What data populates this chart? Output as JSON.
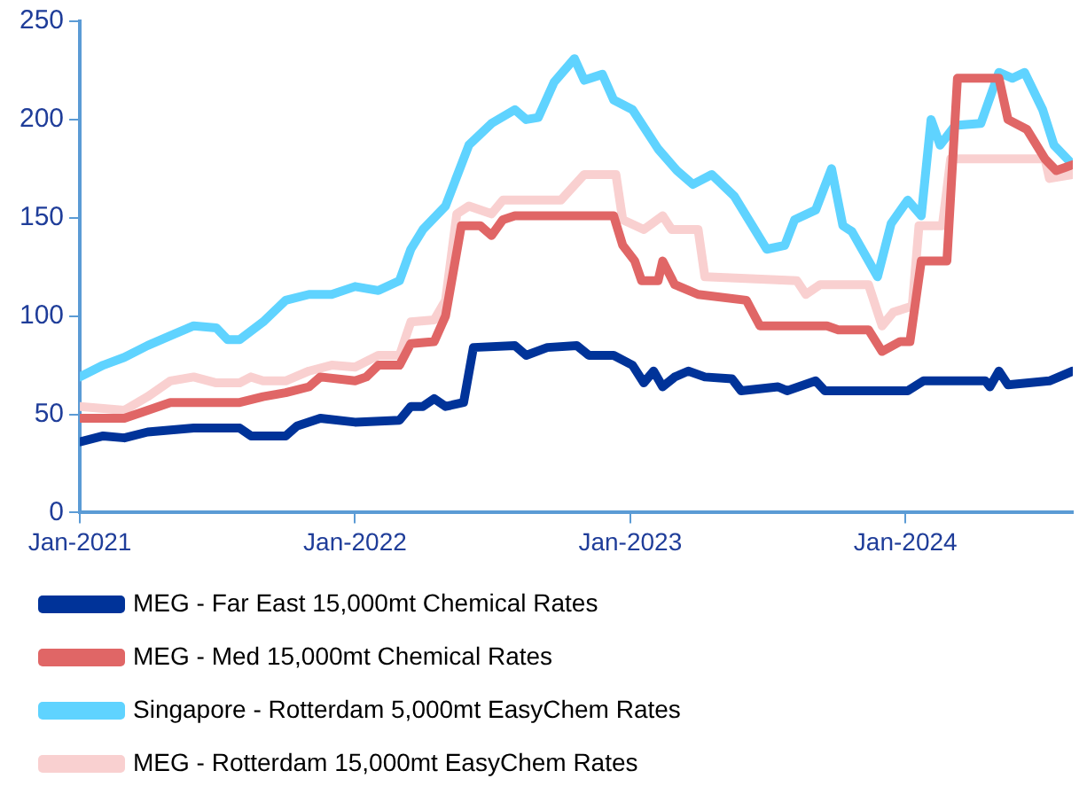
{
  "chart_data": {
    "type": "line",
    "legend": "bottom",
    "grid": false,
    "marker": "none",
    "line_style": "solid",
    "xlim": [
      "2021-01-01",
      "2024-08-10"
    ],
    "xticks": [
      {
        "value": "2021-01-01",
        "label": "Jan-2021"
      },
      {
        "value": "2022-01-01",
        "label": "Jan-2022"
      },
      {
        "value": "2023-01-01",
        "label": "Jan-2023"
      },
      {
        "value": "2024-01-01",
        "label": "Jan-2024"
      }
    ],
    "ylim": [
      0,
      250
    ],
    "yticks": [
      0,
      50,
      100,
      150,
      200,
      250
    ],
    "series": [
      {
        "name": "MEG - Far East 15,000mt Chemical Rates",
        "color": "#003399",
        "x": [
          "2021-01-01",
          "2021-02-01",
          "2021-03-01",
          "2021-04-01",
          "2021-06-01",
          "2021-08-01",
          "2021-08-16",
          "2021-10-01",
          "2021-10-16",
          "2021-11-16",
          "2022-01-01",
          "2022-03-01",
          "2022-03-16",
          "2022-04-01",
          "2022-04-16",
          "2022-05-01",
          "2022-05-25",
          "2022-06-07",
          "2022-08-01",
          "2022-08-16",
          "2022-09-13",
          "2022-10-22",
          "2022-11-07",
          "2022-12-10",
          "2023-01-04",
          "2023-01-19",
          "2023-02-01",
          "2023-02-13",
          "2023-03-01",
          "2023-03-19",
          "2023-04-10",
          "2023-05-16",
          "2023-05-28",
          "2023-07-16",
          "2023-07-28",
          "2023-09-04",
          "2023-09-16",
          "2024-01-04",
          "2024-01-25",
          "2024-04-16",
          "2024-04-22",
          "2024-05-04",
          "2024-05-16",
          "2024-07-10",
          "2024-08-10"
        ],
        "values": [
          36,
          39,
          38,
          41,
          43,
          43,
          39,
          39,
          44,
          48,
          46,
          47,
          54,
          54,
          58,
          54,
          56,
          84,
          85,
          80,
          84,
          85,
          80,
          80,
          75,
          66,
          72,
          64,
          69,
          72,
          69,
          68,
          62,
          64,
          62,
          67,
          62,
          62,
          67,
          67,
          64,
          72,
          65,
          67,
          72
        ]
      },
      {
        "name": "MEG - Med 15,000mt Chemical Rates",
        "color": "#e06666",
        "x": [
          "2021-01-01",
          "2021-03-01",
          "2021-04-01",
          "2021-05-01",
          "2021-08-01",
          "2021-09-01",
          "2021-10-01",
          "2021-11-01",
          "2021-11-16",
          "2022-01-01",
          "2022-01-16",
          "2022-02-01",
          "2022-03-01",
          "2022-03-16",
          "2022-04-16",
          "2022-05-01",
          "2022-05-22",
          "2022-06-16",
          "2022-07-01",
          "2022-07-16",
          "2022-08-01",
          "2022-12-10",
          "2022-12-22",
          "2023-01-07",
          "2023-01-16",
          "2023-02-07",
          "2023-02-13",
          "2023-03-01",
          "2023-04-01",
          "2023-06-04",
          "2023-06-22",
          "2023-09-19",
          "2023-10-04",
          "2023-11-13",
          "2023-12-01",
          "2023-12-25",
          "2024-01-07",
          "2024-01-22",
          "2024-02-25",
          "2024-03-10",
          "2024-05-04",
          "2024-05-16",
          "2024-06-10",
          "2024-07-04",
          "2024-07-19",
          "2024-08-10"
        ],
        "values": [
          48,
          48,
          52,
          56,
          56,
          59,
          61,
          64,
          69,
          67,
          69,
          75,
          75,
          86,
          87,
          100,
          146,
          146,
          141,
          149,
          151,
          151,
          136,
          128,
          118,
          118,
          128,
          116,
          111,
          108,
          95,
          95,
          93,
          93,
          82,
          87,
          87,
          128,
          128,
          221,
          221,
          200,
          195,
          180,
          174,
          177
        ]
      },
      {
        "name": "Singapore - Rotterdam 5,000mt EasyChem Rates",
        "color": "#5fd3ff",
        "x": [
          "2021-01-01",
          "2021-02-01",
          "2021-03-01",
          "2021-04-01",
          "2021-05-01",
          "2021-06-01",
          "2021-07-01",
          "2021-07-16",
          "2021-08-01",
          "2021-09-01",
          "2021-10-01",
          "2021-11-01",
          "2021-12-01",
          "2022-01-01",
          "2022-02-01",
          "2022-03-01",
          "2022-03-16",
          "2022-04-01",
          "2022-05-01",
          "2022-06-01",
          "2022-07-01",
          "2022-08-01",
          "2022-08-16",
          "2022-09-01",
          "2022-09-22",
          "2022-10-19",
          "2022-11-01",
          "2022-11-25",
          "2022-12-10",
          "2023-01-04",
          "2023-02-07",
          "2023-03-04",
          "2023-03-25",
          "2023-04-19",
          "2023-05-19",
          "2023-07-01",
          "2023-07-25",
          "2023-08-07",
          "2023-09-04",
          "2023-09-25",
          "2023-10-10",
          "2023-10-22",
          "2023-11-25",
          "2023-12-13",
          "2024-01-04",
          "2024-01-22",
          "2024-02-04",
          "2024-02-16",
          "2024-03-07",
          "2024-04-10",
          "2024-05-04",
          "2024-05-22",
          "2024-06-07",
          "2024-07-01",
          "2024-07-16",
          "2024-08-10"
        ],
        "values": [
          69,
          75,
          79,
          85,
          90,
          95,
          94,
          88,
          88,
          97,
          108,
          111,
          111,
          115,
          113,
          118,
          134,
          144,
          156,
          187,
          198,
          205,
          200,
          201,
          219,
          231,
          220,
          223,
          210,
          205,
          185,
          174,
          167,
          172,
          161,
          134,
          136,
          149,
          154,
          175,
          146,
          143,
          120,
          147,
          159,
          151,
          200,
          187,
          197,
          198,
          224,
          221,
          224,
          205,
          187,
          177
        ]
      },
      {
        "name": "MEG - Rotterdam 15,000mt EasyChem Rates",
        "color": "#f9d0d0",
        "x": [
          "2021-01-01",
          "2021-03-01",
          "2021-04-01",
          "2021-05-01",
          "2021-06-01",
          "2021-07-01",
          "2021-08-01",
          "2021-08-16",
          "2021-09-01",
          "2021-10-01",
          "2021-11-01",
          "2021-12-01",
          "2022-01-01",
          "2022-02-01",
          "2022-03-01",
          "2022-03-16",
          "2022-04-16",
          "2022-05-01",
          "2022-05-16",
          "2022-06-01",
          "2022-07-01",
          "2022-07-16",
          "2022-10-01",
          "2022-11-01",
          "2022-12-13",
          "2022-12-22",
          "2023-01-19",
          "2023-02-13",
          "2023-02-25",
          "2023-04-01",
          "2023-04-10",
          "2023-08-10",
          "2023-08-22",
          "2023-09-10",
          "2023-11-13",
          "2023-12-01",
          "2023-12-16",
          "2024-01-10",
          "2024-01-19",
          "2024-02-19",
          "2024-03-01",
          "2024-07-04",
          "2024-07-10",
          "2024-08-10"
        ],
        "values": [
          54,
          52,
          59,
          67,
          69,
          66,
          66,
          69,
          67,
          67,
          72,
          75,
          74,
          80,
          80,
          97,
          98,
          108,
          152,
          156,
          152,
          159,
          159,
          172,
          172,
          149,
          144,
          151,
          144,
          144,
          120,
          118,
          111,
          116,
          116,
          95,
          102,
          105,
          146,
          146,
          180,
          180,
          170,
          172
        ]
      }
    ]
  }
}
